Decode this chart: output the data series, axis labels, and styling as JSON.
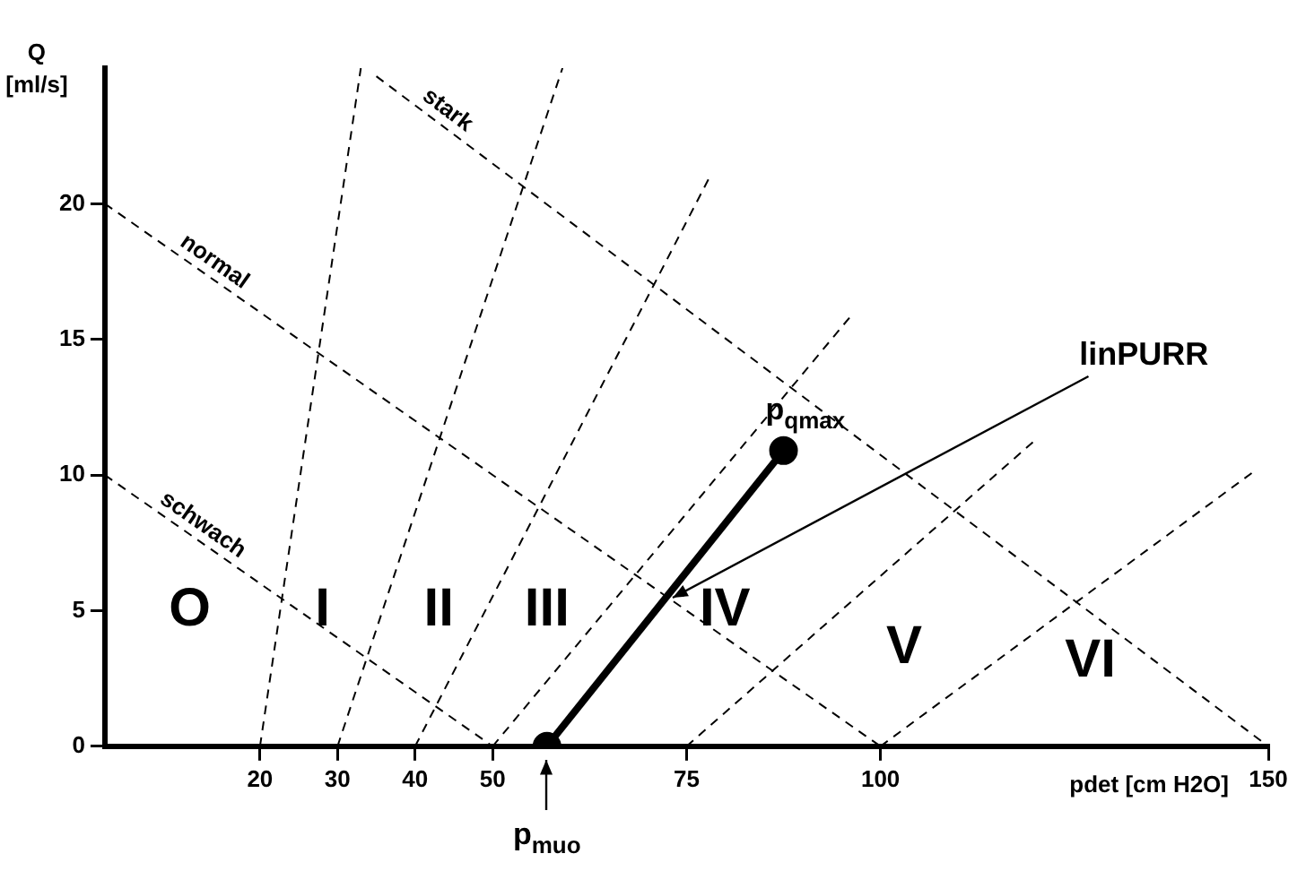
{
  "chart_data": {
    "type": "line",
    "xlabel": "pdet [cm H2O]",
    "ylabel": "Q [ml/s]",
    "xlim": [
      0,
      150
    ],
    "xticks": [
      20,
      30,
      40,
      50,
      75,
      100,
      150
    ],
    "ylim": [
      0,
      25
    ],
    "yticks": [
      0,
      5,
      10,
      15,
      20
    ],
    "grid": false,
    "legend": false,
    "line_style": "dashed",
    "marker": "none",
    "series": [
      {
        "color": "#000000",
        "x": [
          20,
          33
        ],
        "values": [
          0,
          25
        ]
      },
      {
        "color": "#000000",
        "x": [
          30,
          59
        ],
        "values": [
          0,
          25
        ]
      },
      {
        "color": "#000000",
        "x": [
          40,
          78
        ],
        "values": [
          0,
          21
        ]
      },
      {
        "color": "#000000",
        "x": [
          50,
          96
        ],
        "values": [
          0,
          15.8
        ]
      },
      {
        "color": "#000000",
        "x": [
          75,
          120
        ],
        "values": [
          0,
          11.3
        ]
      },
      {
        "color": "#000000",
        "x": [
          100,
          148
        ],
        "values": [
          0,
          10.1
        ]
      },
      {
        "color": "#000000",
        "x": [
          0,
          50
        ],
        "values": [
          10,
          0
        ]
      },
      {
        "color": "#000000",
        "x": [
          0,
          100
        ],
        "values": [
          20,
          0
        ]
      },
      {
        "color": "#000000",
        "x": [
          35,
          150
        ],
        "values": [
          24.7,
          0
        ]
      },
      {
        "color": "#000000",
        "x": [
          57,
          87.5
        ],
        "values": [
          0,
          10.9
        ],
        "line_style": "solid",
        "marker": "circle"
      }
    ],
    "annotations": [
      {
        "text": "stark",
        "x": 43,
        "y": 23
      },
      {
        "text": "normal",
        "x": 13,
        "y": 17.4
      },
      {
        "text": "schwach",
        "x": 11.5,
        "y": 7.7
      },
      "O",
      "I",
      "II",
      "III",
      "IV",
      "V",
      "VI",
      {
        "text": "p$_{qmax}$",
        "x": 87.5,
        "y": 10.9
      },
      {
        "text": "linPURR",
        "x": 72.25,
        "y": 5.45
      },
      {
        "text": "p$_{muo}$",
        "x": 57,
        "y": 0
      }
    ]
  }
}
